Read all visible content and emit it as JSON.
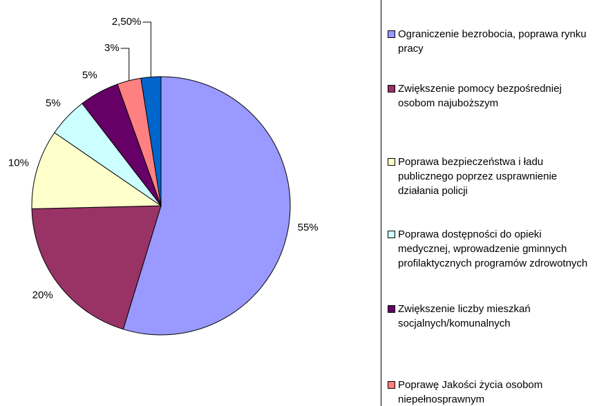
{
  "chart_data": {
    "type": "pie",
    "categories": [
      "Ograniczenie bezrobocia, poprawa rynku pracy",
      "Zwiększenie pomocy bezpośredniej osobom najuboższym",
      "Poprawa bezpieczeństwa i ładu publicznego poprzez usprawnienie działania policji",
      "Poprawa dostępności do opieki medycznej, wprowadzenie gminnych profilaktycznych programów zdrowotnych",
      "Zwiększenie liczby mieszkań socjalnych/komunalnych",
      "Poprawę Jakości życia osobom niepełnosprawnym",
      null
    ],
    "values": [
      55,
      20,
      10,
      5,
      5,
      3,
      2.5
    ],
    "value_labels": [
      "55%",
      "20%",
      "10%",
      "5%",
      "5%",
      "3%",
      "2,50%"
    ],
    "colors": [
      "#9999ff",
      "#993366",
      "#ffffcc",
      "#ccffff",
      "#660066",
      "#ff8080",
      "#0066cc"
    ],
    "legend": "right"
  }
}
